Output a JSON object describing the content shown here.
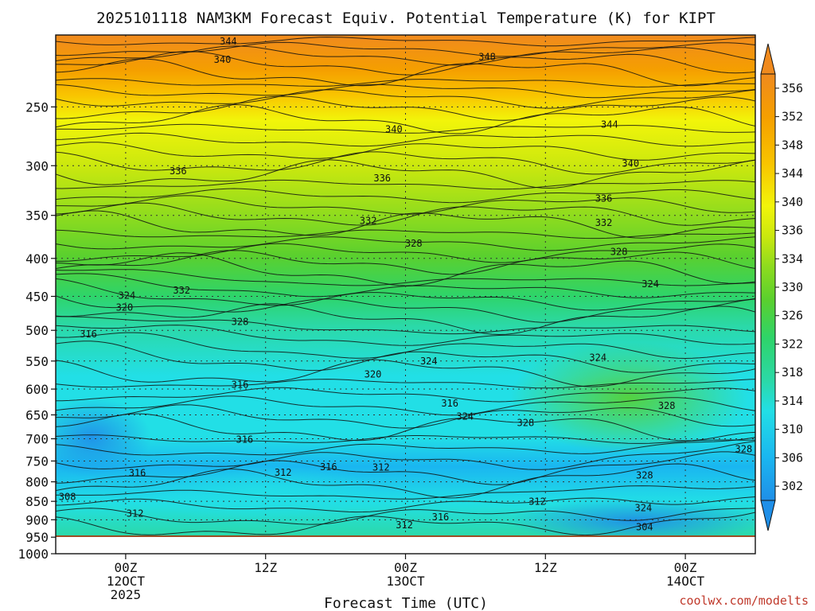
{
  "chart_data": {
    "type": "heatmap",
    "title": "2025101118 NAM3KM Forecast Equiv. Potential Temperature (K) for KIPT",
    "xlabel": "Forecast Time (UTC)",
    "credit": "coolwx.com/modelts",
    "x_ticks": [
      {
        "hours": 6,
        "lines": [
          "00Z",
          "12OCT",
          "2025"
        ]
      },
      {
        "hours": 18,
        "lines": [
          "12Z"
        ]
      },
      {
        "hours": 30,
        "lines": [
          "00Z",
          "13OCT"
        ]
      },
      {
        "hours": 42,
        "lines": [
          "12Z"
        ]
      },
      {
        "hours": 54,
        "lines": [
          "00Z",
          "14OCT"
        ]
      }
    ],
    "xlim_hours": [
      0,
      60
    ],
    "y_axis": "pressure (hPa), log scale, inverted",
    "y_ticks": [
      250,
      300,
      350,
      400,
      450,
      500,
      550,
      600,
      650,
      700,
      750,
      800,
      850,
      900,
      950,
      1000
    ],
    "ylim": [
      200,
      1000
    ],
    "grid": true,
    "colorbar": {
      "labels": [
        302,
        306,
        310,
        314,
        318,
        322,
        326,
        330,
        334,
        336,
        340,
        344,
        348,
        352,
        356
      ],
      "min": 300,
      "max": 358
    },
    "colors": {
      "c300": "#1f8fe8",
      "c306": "#1ab6f0",
      "c312": "#22dfe6",
      "c316": "#2bd9a8",
      "c322": "#2ed46a",
      "c327": "#5ad02e",
      "c332": "#8fdc1e",
      "c336": "#cbe80e",
      "c340": "#f2f50a",
      "c346": "#f9c400",
      "c352": "#f59f00",
      "c358": "#f08a1e",
      "ground": "#9c4c24"
    },
    "contour_labels": [
      {
        "text": "344",
        "hours": 14.8,
        "p": 204
      },
      {
        "text": "340",
        "hours": 14.3,
        "p": 216
      },
      {
        "text": "348",
        "hours": 37.0,
        "p": 214
      },
      {
        "text": "340",
        "hours": 29.0,
        "p": 268
      },
      {
        "text": "344",
        "hours": 47.5,
        "p": 264
      },
      {
        "text": "336",
        "hours": 10.5,
        "p": 305
      },
      {
        "text": "336",
        "hours": 28.0,
        "p": 312
      },
      {
        "text": "340",
        "hours": 49.3,
        "p": 298
      },
      {
        "text": "336",
        "hours": 47.0,
        "p": 332
      },
      {
        "text": "332",
        "hours": 26.8,
        "p": 356
      },
      {
        "text": "332",
        "hours": 47.0,
        "p": 358
      },
      {
        "text": "328",
        "hours": 30.7,
        "p": 382
      },
      {
        "text": "328",
        "hours": 48.3,
        "p": 392
      },
      {
        "text": "324",
        "hours": 6.1,
        "p": 449
      },
      {
        "text": "320",
        "hours": 5.9,
        "p": 466
      },
      {
        "text": "332",
        "hours": 10.8,
        "p": 442
      },
      {
        "text": "328",
        "hours": 15.8,
        "p": 487
      },
      {
        "text": "324",
        "hours": 51.0,
        "p": 433
      },
      {
        "text": "316",
        "hours": 2.8,
        "p": 506
      },
      {
        "text": "324",
        "hours": 32.0,
        "p": 550
      },
      {
        "text": "324",
        "hours": 46.5,
        "p": 544
      },
      {
        "text": "316",
        "hours": 15.8,
        "p": 592
      },
      {
        "text": "320",
        "hours": 27.2,
        "p": 573
      },
      {
        "text": "316",
        "hours": 33.8,
        "p": 627
      },
      {
        "text": "324",
        "hours": 35.1,
        "p": 653
      },
      {
        "text": "328",
        "hours": 40.3,
        "p": 666
      },
      {
        "text": "328",
        "hours": 52.4,
        "p": 632
      },
      {
        "text": "316",
        "hours": 16.2,
        "p": 702
      },
      {
        "text": "328",
        "hours": 59.0,
        "p": 723
      },
      {
        "text": "316",
        "hours": 7.0,
        "p": 778
      },
      {
        "text": "316",
        "hours": 23.4,
        "p": 764
      },
      {
        "text": "312",
        "hours": 27.9,
        "p": 765
      },
      {
        "text": "312",
        "hours": 19.5,
        "p": 777
      },
      {
        "text": "328",
        "hours": 50.5,
        "p": 784
      },
      {
        "text": "308",
        "hours": 1.0,
        "p": 838
      },
      {
        "text": "312",
        "hours": 6.8,
        "p": 883
      },
      {
        "text": "312",
        "hours": 41.3,
        "p": 851
      },
      {
        "text": "324",
        "hours": 50.4,
        "p": 868
      },
      {
        "text": "316",
        "hours": 33.0,
        "p": 893
      },
      {
        "text": "312",
        "hours": 29.9,
        "p": 915
      },
      {
        "text": "304",
        "hours": 50.5,
        "p": 921
      }
    ]
  }
}
